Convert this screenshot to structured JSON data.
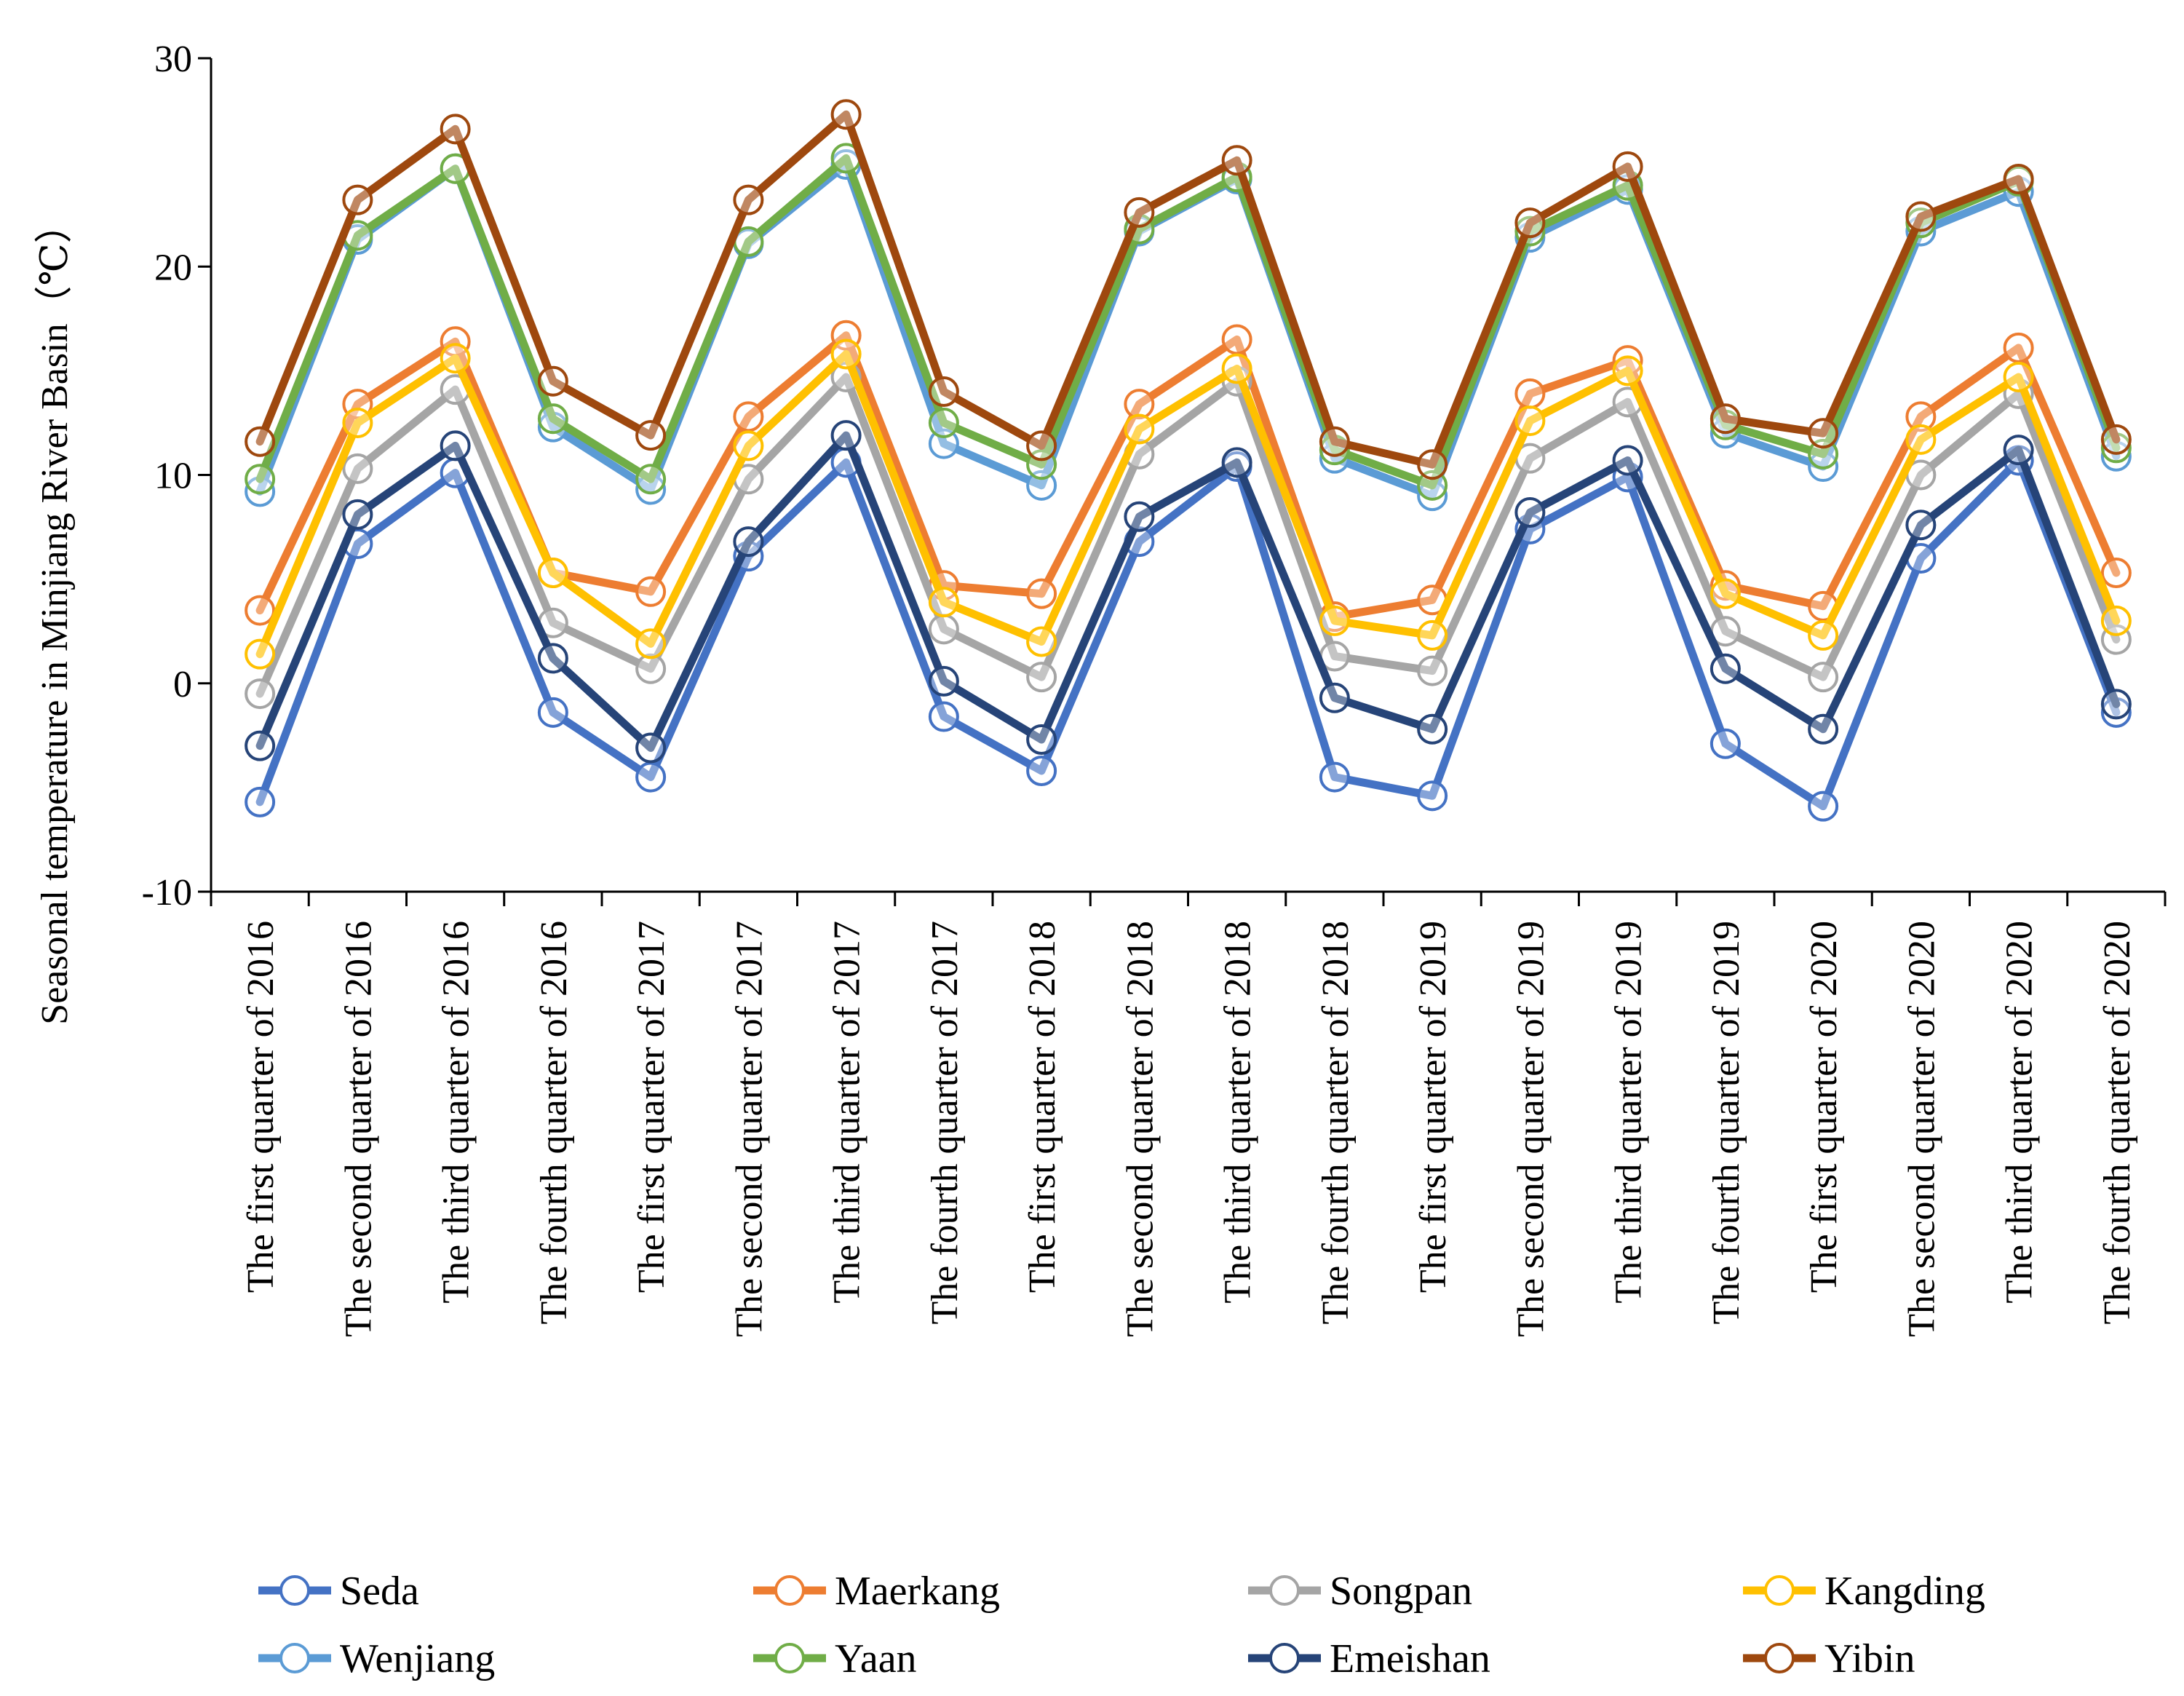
{
  "chart_data": {
    "type": "line",
    "title": "",
    "xlabel": "",
    "ylabel": "Seasonal temperature  in Minjiang River Basin（℃）",
    "ylim": [
      -10,
      30
    ],
    "yticks": [
      -10,
      0,
      10,
      20,
      30
    ],
    "grid": false,
    "legend": "bottom",
    "categories": [
      "The first quarter of 2016",
      "The second quarter of 2016",
      "The third quarter of 2016",
      "The fourth quarter of 2016",
      "The first quarter of 2017",
      "The second quarter of 2017",
      "The third quarter of 2017",
      "The fourth quarter of 2017",
      "The first quarter of 2018",
      "The second quarter of 2018",
      "The third quarter of 2018",
      "The fourth quarter of 2018",
      "The first quarter of 2019",
      "The second quarter of 2019",
      "The third quarter of 2019",
      "The fourth quarter of 2019",
      "The first quarter of 2020",
      "The second quarter of 2020",
      "The third quarter of 2020",
      "The fourth quarter of 2020"
    ],
    "series": [
      {
        "name": "Seda",
        "color": "#4472C4",
        "values": [
          -5.7,
          6.7,
          10.1,
          -1.4,
          -4.5,
          6.1,
          10.6,
          -1.6,
          -4.2,
          6.8,
          10.4,
          -4.5,
          -5.4,
          7.4,
          9.9,
          -2.9,
          -5.9,
          6.0,
          10.7,
          -1.4
        ]
      },
      {
        "name": "Maerkang",
        "color": "#ED7D31",
        "values": [
          3.5,
          13.4,
          16.4,
          5.3,
          4.4,
          12.8,
          16.7,
          4.7,
          4.3,
          13.4,
          16.5,
          3.2,
          4.0,
          13.9,
          15.5,
          4.7,
          3.7,
          12.8,
          16.1,
          5.3
        ]
      },
      {
        "name": "Songpan",
        "color": "#A5A5A5",
        "values": [
          -0.5,
          10.3,
          14.1,
          2.9,
          0.7,
          9.8,
          14.7,
          2.6,
          0.3,
          11.0,
          14.5,
          1.3,
          0.6,
          10.8,
          13.5,
          2.5,
          0.3,
          10.0,
          13.9,
          2.1
        ]
      },
      {
        "name": "Kangding",
        "color": "#FFC000",
        "values": [
          1.4,
          12.5,
          15.6,
          5.3,
          1.9,
          11.4,
          15.8,
          3.9,
          2.0,
          12.2,
          15.1,
          3.0,
          2.3,
          12.6,
          15.0,
          4.3,
          2.3,
          11.7,
          14.7,
          3.0
        ]
      },
      {
        "name": "Wenjiang",
        "color": "#5B9BD5",
        "values": [
          9.2,
          21.3,
          24.7,
          12.3,
          9.3,
          21.1,
          24.9,
          11.5,
          9.5,
          21.7,
          24.2,
          10.8,
          9.0,
          21.4,
          23.7,
          12.0,
          10.4,
          21.7,
          23.6,
          10.9
        ]
      },
      {
        "name": "Yaan",
        "color": "#70AD47",
        "values": [
          9.8,
          21.5,
          24.7,
          12.7,
          9.8,
          21.2,
          25.2,
          12.5,
          10.5,
          21.8,
          24.3,
          11.2,
          9.5,
          21.7,
          23.9,
          12.4,
          11.0,
          22.1,
          24.1,
          11.3
        ]
      },
      {
        "name": "Emeishan",
        "color": "#264478",
        "values": [
          -3.0,
          8.1,
          11.4,
          1.2,
          -3.1,
          6.8,
          11.9,
          0.1,
          -2.7,
          8.0,
          10.6,
          -0.7,
          -2.2,
          8.2,
          10.7,
          0.7,
          -2.2,
          7.6,
          11.2,
          -1.0
        ]
      },
      {
        "name": "Yibin",
        "color": "#9E480E",
        "values": [
          11.6,
          23.2,
          26.6,
          14.5,
          11.9,
          23.2,
          27.3,
          14.0,
          11.4,
          22.6,
          25.1,
          11.6,
          10.5,
          22.1,
          24.8,
          12.7,
          12.0,
          22.4,
          24.2,
          11.7
        ]
      }
    ]
  }
}
